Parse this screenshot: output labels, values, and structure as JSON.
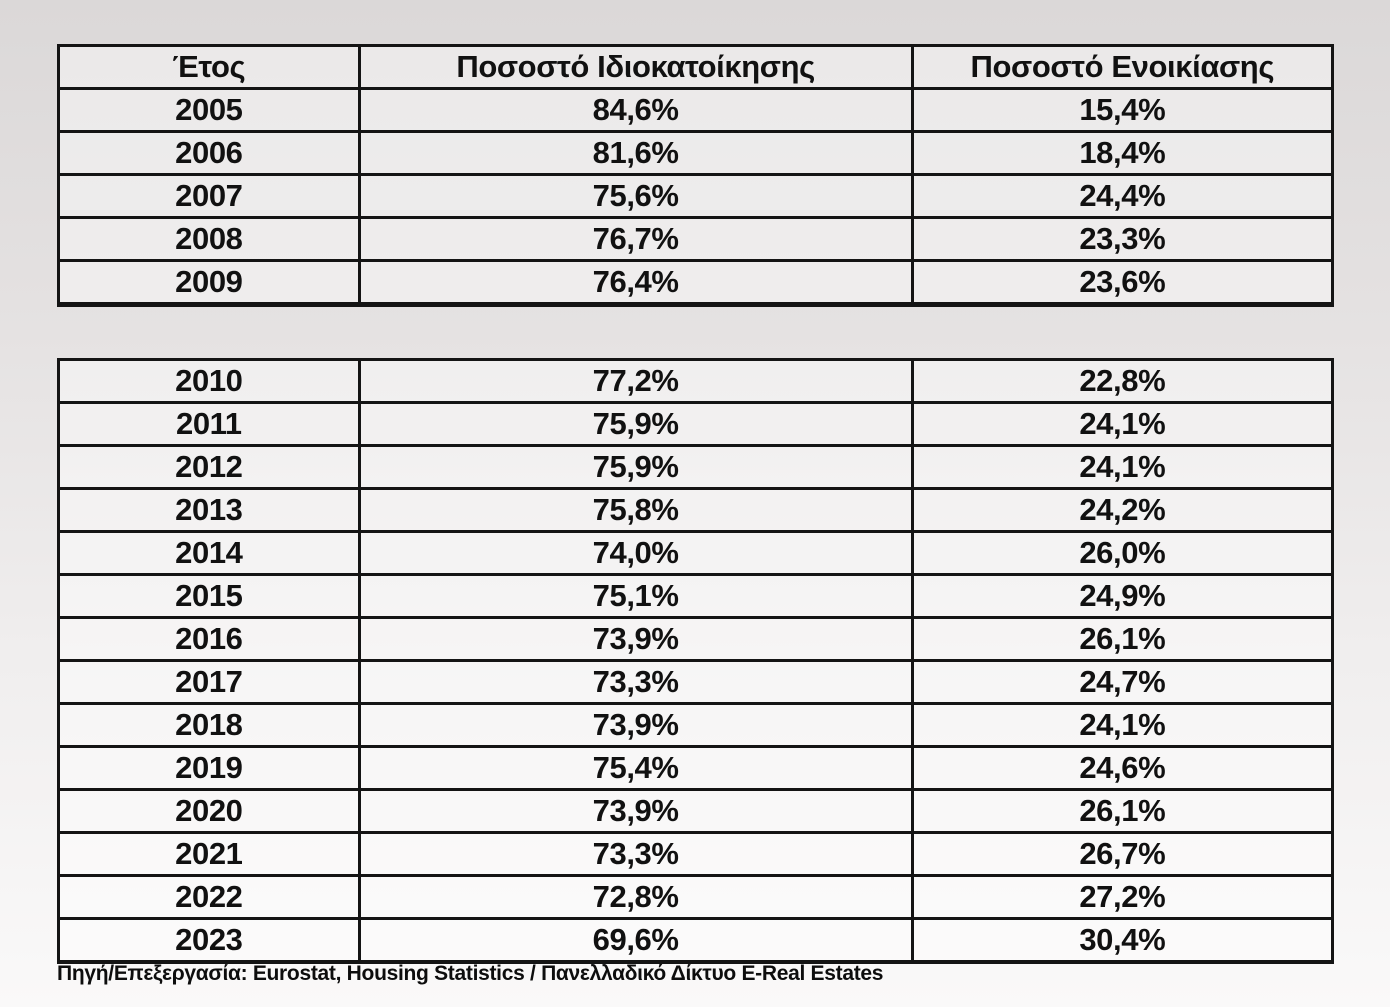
{
  "page": {
    "background_top_color": "#dbd8d8",
    "background_bottom_color": "#faf9f9",
    "border_color": "#141414",
    "text_color": "#111111"
  },
  "tables": {
    "headers": {
      "year": "Έτος",
      "ownership": "Ποσοστό Ιδιοκατοίκησης",
      "rental": "Ποσοστό Ενοικίασης"
    },
    "block1": {
      "rows": [
        {
          "year": "2005",
          "ownership": "84,6%",
          "rental": "15,4%"
        },
        {
          "year": "2006",
          "ownership": "81,6%",
          "rental": "18,4%"
        },
        {
          "year": "2007",
          "ownership": "75,6%",
          "rental": "24,4%"
        },
        {
          "year": "2008",
          "ownership": "76,7%",
          "rental": "23,3%"
        },
        {
          "year": "2009",
          "ownership": "76,4%",
          "rental": "23,6%"
        }
      ]
    },
    "block2": {
      "rows": [
        {
          "year": "2010",
          "ownership": "77,2%",
          "rental": "22,8%"
        },
        {
          "year": "2011",
          "ownership": "75,9%",
          "rental": "24,1%"
        },
        {
          "year": "2012",
          "ownership": "75,9%",
          "rental": "24,1%"
        },
        {
          "year": "2013",
          "ownership": "75,8%",
          "rental": "24,2%"
        },
        {
          "year": "2014",
          "ownership": "74,0%",
          "rental": "26,0%"
        },
        {
          "year": "2015",
          "ownership": "75,1%",
          "rental": "24,9%"
        },
        {
          "year": "2016",
          "ownership": "73,9%",
          "rental": "26,1%"
        },
        {
          "year": "2017",
          "ownership": "73,3%",
          "rental": "24,7%"
        },
        {
          "year": "2018",
          "ownership": "73,9%",
          "rental": "24,1%"
        },
        {
          "year": "2019",
          "ownership": "75,4%",
          "rental": "24,6%"
        },
        {
          "year": "2020",
          "ownership": "73,9%",
          "rental": "26,1%"
        },
        {
          "year": "2021",
          "ownership": "73,3%",
          "rental": "26,7%"
        },
        {
          "year": "2022",
          "ownership": "72,8%",
          "rental": "27,2%"
        },
        {
          "year": "2023",
          "ownership": "69,6%",
          "rental": "30,4%"
        }
      ]
    }
  },
  "source_note": "Πηγή/Επεξεργασία: Eurostat, Housing Statistics / Πανελλαδικό Δίκτυο E-Real Estates",
  "chart_data": {
    "type": "table",
    "title": "",
    "columns": [
      "Έτος",
      "Ποσοστό Ιδιοκατοίκησης",
      "Ποσοστό Ενοικίασης"
    ],
    "rows": [
      [
        "2005",
        "84,6%",
        "15,4%"
      ],
      [
        "2006",
        "81,6%",
        "18,4%"
      ],
      [
        "2007",
        "75,6%",
        "24,4%"
      ],
      [
        "2008",
        "76,7%",
        "23,3%"
      ],
      [
        "2009",
        "76,4%",
        "23,6%"
      ],
      [
        "2010",
        "77,2%",
        "22,8%"
      ],
      [
        "2011",
        "75,9%",
        "24,1%"
      ],
      [
        "2012",
        "75,9%",
        "24,1%"
      ],
      [
        "2013",
        "75,8%",
        "24,2%"
      ],
      [
        "2014",
        "74,0%",
        "26,0%"
      ],
      [
        "2015",
        "75,1%",
        "24,9%"
      ],
      [
        "2016",
        "73,9%",
        "26,1%"
      ],
      [
        "2017",
        "73,3%",
        "24,7%"
      ],
      [
        "2018",
        "73,9%",
        "24,1%"
      ],
      [
        "2019",
        "75,4%",
        "24,6%"
      ],
      [
        "2020",
        "73,9%",
        "26,1%"
      ],
      [
        "2021",
        "73,3%",
        "26,7%"
      ],
      [
        "2022",
        "72,8%",
        "27,2%"
      ],
      [
        "2023",
        "69,6%",
        "30,4%"
      ]
    ],
    "ownership_values_pct": [
      84.6,
      81.6,
      75.6,
      76.7,
      76.4,
      77.2,
      75.9,
      75.9,
      75.8,
      74.0,
      75.1,
      73.9,
      73.3,
      73.9,
      75.4,
      73.9,
      73.3,
      72.8,
      69.6
    ],
    "rental_values_pct": [
      15.4,
      18.4,
      24.4,
      23.3,
      23.6,
      22.8,
      24.1,
      24.1,
      24.2,
      26.0,
      24.9,
      26.1,
      24.7,
      24.1,
      24.6,
      26.1,
      26.7,
      27.2,
      30.4
    ],
    "layout": "two stacked table blocks: years 2005-2009 with header row, years 2010-2023 without header; source note below",
    "source": "Πηγή/Επεξεργασία: Eurostat, Housing Statistics / Πανελλαδικό Δίκτυο E-Real Estates"
  }
}
